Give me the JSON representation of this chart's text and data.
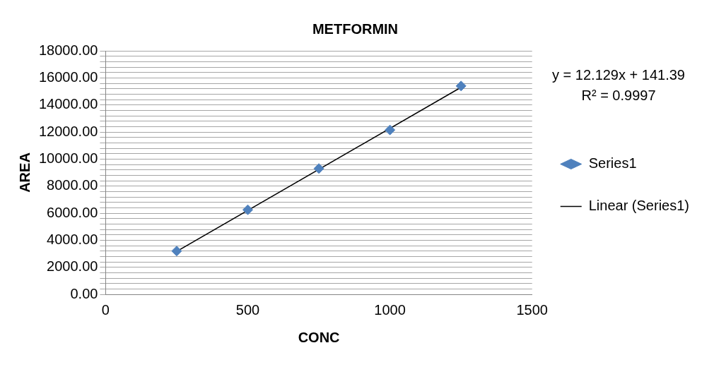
{
  "chart_data": {
    "type": "scatter",
    "title": "METFORMIN",
    "xlabel": "CONC",
    "ylabel": "AREA",
    "series": [
      {
        "name": "Series1",
        "color": "#4f81bd",
        "x": [
          250,
          500,
          750,
          1000,
          1250
        ],
        "values": [
          3200,
          6250,
          9300,
          12150,
          15400
        ],
        "marker": "diamond"
      },
      {
        "name": "Linear (Series1)",
        "type": "line",
        "color": "#000000",
        "x": [
          250,
          1250
        ],
        "values": [
          3170,
          15300
        ],
        "marker": "none"
      }
    ],
    "xlim": [
      0,
      1500
    ],
    "xticks": [
      0,
      500,
      1000,
      1500
    ],
    "ylim": [
      0,
      18000
    ],
    "yticks": [
      {
        "value": 0,
        "label": "0.00"
      },
      {
        "value": 400,
        "label": null
      },
      {
        "value": 800,
        "label": null
      },
      {
        "value": 1200,
        "label": null
      },
      {
        "value": 1600,
        "label": null
      },
      {
        "value": 2000,
        "label": "2000.00"
      },
      {
        "value": 2400,
        "label": null
      },
      {
        "value": 2800,
        "label": null
      },
      {
        "value": 3200,
        "label": null
      },
      {
        "value": 3600,
        "label": null
      },
      {
        "value": 4000,
        "label": "4000.00"
      },
      {
        "value": 4400,
        "label": null
      },
      {
        "value": 4800,
        "label": null
      },
      {
        "value": 5200,
        "label": null
      },
      {
        "value": 5600,
        "label": null
      },
      {
        "value": 6000,
        "label": "6000.00"
      },
      {
        "value": 6400,
        "label": null
      },
      {
        "value": 6800,
        "label": null
      },
      {
        "value": 7200,
        "label": null
      },
      {
        "value": 7600,
        "label": null
      },
      {
        "value": 8000,
        "label": "8000.00"
      },
      {
        "value": 8400,
        "label": null
      },
      {
        "value": 8800,
        "label": null
      },
      {
        "value": 9200,
        "label": null
      },
      {
        "value": 9600,
        "label": null
      },
      {
        "value": 10000,
        "label": "10000.00"
      },
      {
        "value": 10400,
        "label": null
      },
      {
        "value": 10800,
        "label": null
      },
      {
        "value": 11200,
        "label": null
      },
      {
        "value": 11600,
        "label": null
      },
      {
        "value": 12000,
        "label": "12000.00"
      },
      {
        "value": 12400,
        "label": null
      },
      {
        "value": 12800,
        "label": null
      },
      {
        "value": 13200,
        "label": null
      },
      {
        "value": 13600,
        "label": null
      },
      {
        "value": 14000,
        "label": "14000.00"
      },
      {
        "value": 14400,
        "label": null
      },
      {
        "value": 14800,
        "label": null
      },
      {
        "value": 15200,
        "label": null
      },
      {
        "value": 15600,
        "label": null
      },
      {
        "value": 16000,
        "label": "16000.00"
      },
      {
        "value": 16400,
        "label": null
      },
      {
        "value": 16800,
        "label": null
      },
      {
        "value": 17200,
        "label": null
      },
      {
        "value": 17600,
        "label": null
      },
      {
        "value": 18000,
        "label": "18000.00"
      }
    ],
    "grid": "y",
    "legend": "right",
    "annotations": [
      "y = 12.129x + 141.39",
      "R² = 0.9997"
    ]
  }
}
